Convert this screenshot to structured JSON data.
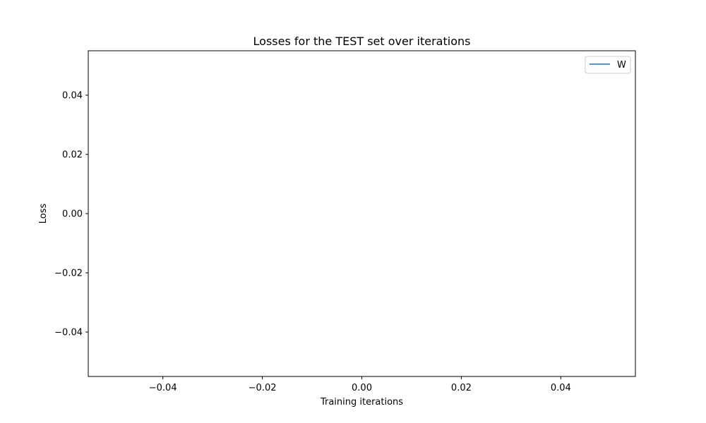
{
  "chart_data": {
    "type": "line",
    "title": "Losses for the TEST set over iterations",
    "xlabel": "Training iterations",
    "ylabel": "Loss",
    "xlim": [
      -0.055,
      0.055
    ],
    "ylim": [
      -0.055,
      0.055
    ],
    "xticks": [
      -0.04,
      -0.02,
      0.0,
      0.02,
      0.04
    ],
    "xtick_labels": [
      "−0.04",
      "−0.02",
      "0.00",
      "0.02",
      "0.04"
    ],
    "yticks": [
      0.04,
      0.02,
      0.0,
      -0.02,
      -0.04
    ],
    "ytick_labels": [
      "0.04",
      "0.02",
      "0.00",
      "−0.02",
      "−0.04"
    ],
    "grid": false,
    "legend_position": "top-right",
    "series": [
      {
        "name": "W",
        "color": "#1f77b4",
        "x": [],
        "y": []
      }
    ]
  }
}
